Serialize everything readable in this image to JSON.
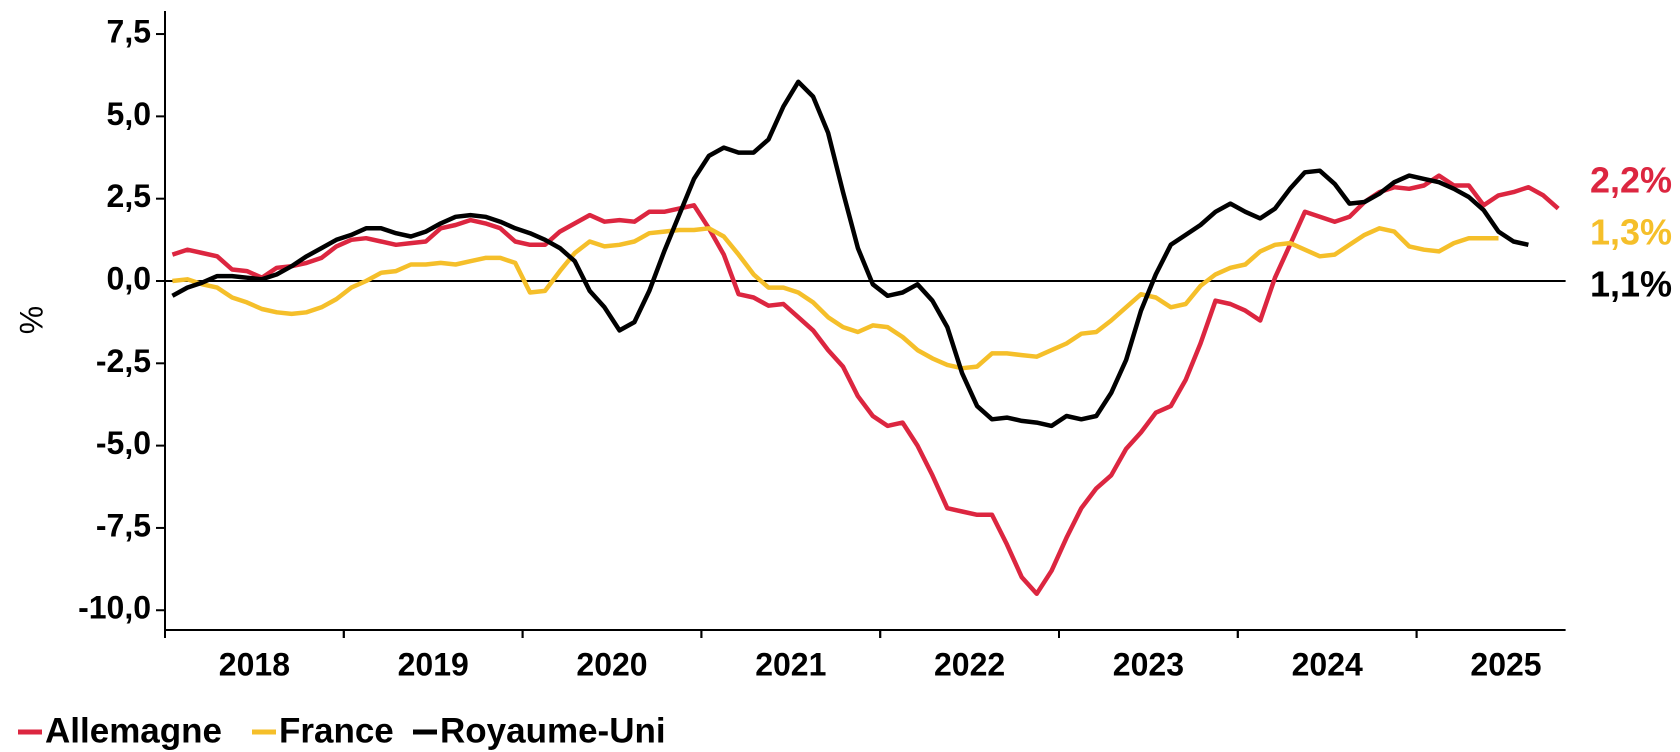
{
  "chart_data": {
    "type": "line",
    "y_label": "%",
    "categories": [
      null,
      null,
      null,
      null,
      null,
      null,
      "2018",
      null,
      null,
      null,
      null,
      null,
      null,
      null,
      null,
      null,
      null,
      null,
      "2019",
      null,
      null,
      null,
      null,
      null,
      null,
      null,
      null,
      null,
      null,
      null,
      "2020",
      null,
      null,
      null,
      null,
      null,
      null,
      null,
      null,
      null,
      null,
      null,
      "2021",
      null,
      null,
      null,
      null,
      null,
      null,
      null,
      null,
      null,
      null,
      null,
      "2022",
      null,
      null,
      null,
      null,
      null,
      null,
      null,
      null,
      null,
      null,
      null,
      "2023",
      null,
      null,
      null,
      null,
      null,
      null,
      null,
      null,
      null,
      null,
      null,
      "2024",
      null,
      null,
      null,
      null,
      null,
      null,
      null,
      null,
      null,
      null,
      null,
      "2025",
      null,
      null,
      null
    ],
    "ylim": [
      -10.6,
      8.2
    ],
    "yticks": [
      {
        "value": 7.5,
        "label": "7,5"
      },
      {
        "value": 5,
        "label": "5,0"
      },
      {
        "value": 2.5,
        "label": "2,5"
      },
      {
        "value": 0,
        "label": "0,0"
      },
      {
        "value": -2.5,
        "label": "-2,5"
      },
      {
        "value": -5,
        "label": "-5,0"
      },
      {
        "value": -7.5,
        "label": "-7,5"
      },
      {
        "value": -10,
        "label": "-10,0"
      }
    ],
    "zero_line": true,
    "legend": "bottom-left",
    "series": [
      {
        "name": "Allemagne",
        "color": "#dc2640",
        "end_label": "2,2%",
        "values": [
          0.8,
          0.95,
          0.85,
          0.75,
          0.35,
          0.3,
          0.1,
          0.4,
          0.45,
          0.55,
          0.7,
          1.05,
          1.25,
          1.3,
          1.2,
          1.1,
          1.15,
          1.2,
          1.6,
          1.7,
          1.85,
          1.75,
          1.6,
          1.2,
          1.1,
          1.1,
          1.5,
          1.75,
          2.0,
          1.8,
          1.85,
          1.8,
          2.1,
          2.1,
          2.2,
          2.3,
          1.6,
          0.8,
          -0.4,
          -0.5,
          -0.75,
          -0.7,
          -1.1,
          -1.5,
          -2.1,
          -2.6,
          -3.5,
          -4.1,
          -4.4,
          -4.3,
          -5.0,
          -5.9,
          -6.9,
          -7.0,
          -7.1,
          -7.1,
          -8.0,
          -9.0,
          -9.5,
          -8.8,
          -7.8,
          -6.9,
          -6.3,
          -5.9,
          -5.1,
          -4.6,
          -4.0,
          -3.8,
          -3.0,
          -1.9,
          -0.6,
          -0.7,
          -0.9,
          -1.2,
          0.1,
          1.1,
          2.1,
          1.95,
          1.8,
          1.95,
          2.4,
          2.7,
          2.85,
          2.8,
          2.9,
          3.2,
          2.9,
          2.9,
          2.3,
          2.6,
          2.7,
          2.85,
          2.6,
          2.2
        ]
      },
      {
        "name": "France",
        "color": "#f5bf2a",
        "end_label": "1,3%",
        "values": [
          0.0,
          0.05,
          -0.1,
          -0.2,
          -0.5,
          -0.65,
          -0.85,
          -0.95,
          -1.0,
          -0.95,
          -0.8,
          -0.55,
          -0.2,
          0.0,
          0.25,
          0.3,
          0.5,
          0.5,
          0.55,
          0.5,
          0.6,
          0.7,
          0.7,
          0.55,
          -0.35,
          -0.3,
          0.3,
          0.85,
          1.2,
          1.05,
          1.1,
          1.2,
          1.45,
          1.5,
          1.55,
          1.55,
          1.6,
          1.35,
          0.8,
          0.2,
          -0.2,
          -0.2,
          -0.35,
          -0.65,
          -1.1,
          -1.4,
          -1.55,
          -1.35,
          -1.4,
          -1.7,
          -2.1,
          -2.35,
          -2.55,
          -2.65,
          -2.6,
          -2.2,
          -2.2,
          -2.25,
          -2.3,
          -2.1,
          -1.9,
          -1.6,
          -1.55,
          -1.2,
          -0.8,
          -0.4,
          -0.5,
          -0.8,
          -0.7,
          -0.15,
          0.2,
          0.4,
          0.5,
          0.9,
          1.1,
          1.15,
          0.95,
          0.75,
          0.8,
          1.1,
          1.4,
          1.6,
          1.5,
          1.05,
          0.95,
          0.9,
          1.15,
          1.3,
          1.3,
          1.3,
          null,
          null,
          null,
          null
        ]
      },
      {
        "name": "Royaume-Uni",
        "color": "#000000",
        "end_label": "1,1%",
        "values": [
          -0.45,
          -0.2,
          -0.05,
          0.15,
          0.15,
          0.1,
          0.05,
          0.2,
          0.45,
          0.75,
          1.0,
          1.25,
          1.4,
          1.6,
          1.6,
          1.45,
          1.35,
          1.5,
          1.75,
          1.95,
          2.0,
          1.95,
          1.8,
          1.6,
          1.45,
          1.25,
          1.0,
          0.6,
          -0.3,
          -0.8,
          -1.5,
          -1.25,
          -0.3,
          0.9,
          2.0,
          3.1,
          3.8,
          4.05,
          3.9,
          3.9,
          4.3,
          5.3,
          6.05,
          5.6,
          4.5,
          2.7,
          1.0,
          -0.1,
          -0.45,
          -0.35,
          -0.1,
          -0.6,
          -1.4,
          -2.8,
          -3.8,
          -4.2,
          -4.15,
          -4.25,
          -4.3,
          -4.4,
          -4.1,
          -4.2,
          -4.1,
          -3.4,
          -2.4,
          -0.9,
          0.2,
          1.1,
          1.4,
          1.7,
          2.1,
          2.35,
          2.1,
          1.9,
          2.2,
          2.8,
          3.3,
          3.35,
          2.95,
          2.35,
          2.4,
          2.65,
          3.0,
          3.2,
          3.1,
          3.0,
          2.8,
          2.55,
          2.15,
          1.5,
          1.2,
          1.1,
          null,
          null
        ]
      }
    ]
  }
}
